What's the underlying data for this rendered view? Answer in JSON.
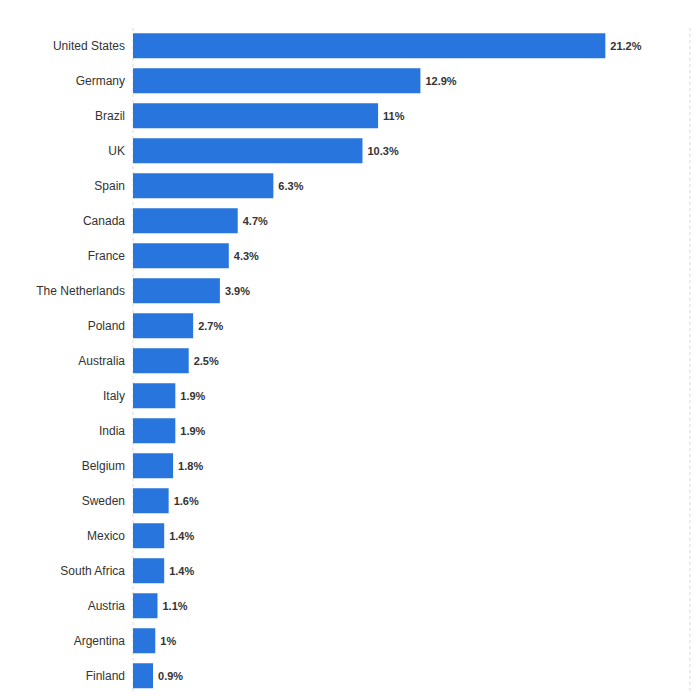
{
  "chart_data": {
    "type": "bar",
    "orientation": "horizontal",
    "categories": [
      "United States",
      "Germany",
      "Brazil",
      "UK",
      "Spain",
      "Canada",
      "France",
      "The Netherlands",
      "Poland",
      "Australia",
      "Italy",
      "India",
      "Belgium",
      "Sweden",
      "Mexico",
      "South Africa",
      "Austria",
      "Argentina",
      "Finland"
    ],
    "values": [
      21.2,
      12.9,
      11,
      10.3,
      6.3,
      4.7,
      4.3,
      3.9,
      2.7,
      2.5,
      1.9,
      1.9,
      1.8,
      1.6,
      1.4,
      1.4,
      1.1,
      1,
      0.9
    ],
    "value_labels": [
      "21.2%",
      "12.9%",
      "11%",
      "10.3%",
      "6.3%",
      "4.7%",
      "4.3%",
      "3.9%",
      "2.7%",
      "2.5%",
      "1.9%",
      "1.9%",
      "1.8%",
      "1.6%",
      "1.4%",
      "1.4%",
      "1.1%",
      "1%",
      "0.9%"
    ],
    "color": "#2876dd",
    "xlim": [
      0,
      25
    ],
    "xticks": [
      0,
      2.5,
      5,
      7.5,
      10,
      12.5,
      15,
      17.5,
      20,
      22.5,
      25
    ],
    "grid": true,
    "data_labels": true,
    "tick_labels": "y"
  }
}
